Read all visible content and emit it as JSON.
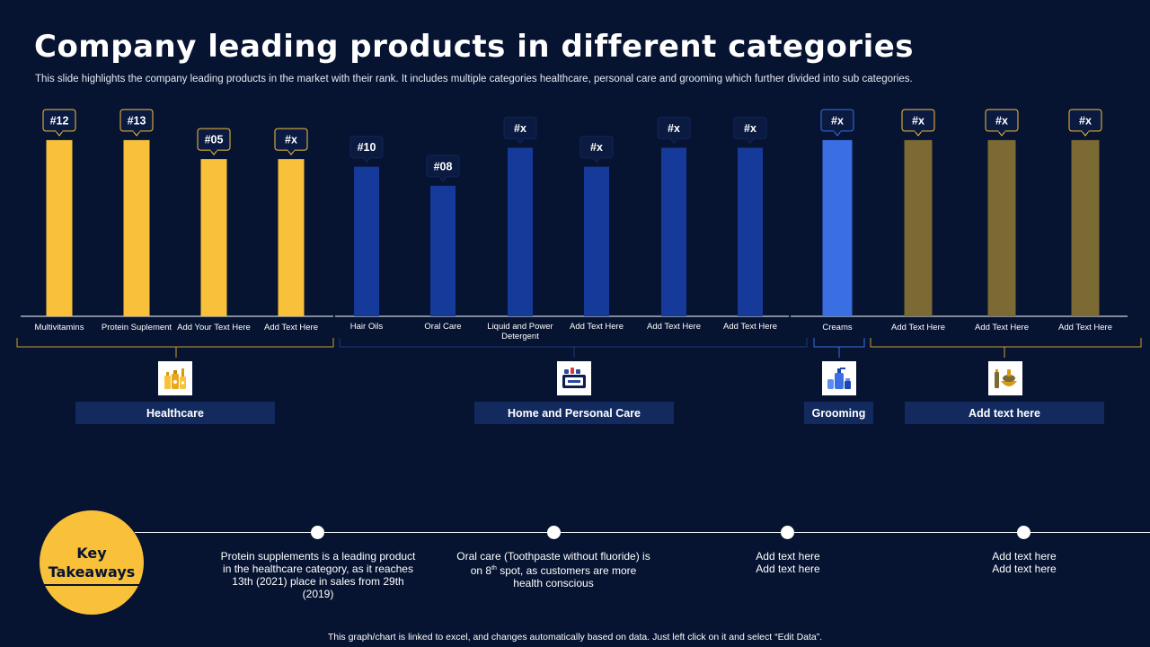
{
  "title": "Company leading products in different categories",
  "subtitle": "This slide highlights the company leading products in the market with their rank. It includes multiple categories healthcare, personal care and grooming which further divided into sub categories.",
  "colors": {
    "background": "#061331",
    "healthcare": "#f8c139",
    "home_personal": "#163a99",
    "grooming": "#3a6fe4",
    "add_text": "#7b6a34",
    "label_box": "#122a5e",
    "key_takeaways": "#f8c139"
  },
  "chart_data": {
    "type": "bar",
    "title": "",
    "xlabel": "",
    "ylabel": "",
    "ylim": [
      0,
      20
    ],
    "grid": false,
    "categories": [
      "Multivitamins",
      "Protein Suplement",
      "Add Your Text Here",
      "Add Text Here",
      "Hair Oils",
      "Oral Care",
      "Liquid and Power Detergent",
      "Add Text Here",
      "Add Text Here",
      "Add Text Here",
      "Creams",
      "Add Text Here",
      "Add Text Here",
      "Add Text Here"
    ],
    "values": [
      18.5,
      18.5,
      16.5,
      16.5,
      15.7,
      13.7,
      17.7,
      15.7,
      17.7,
      17.7,
      18.5,
      18.5,
      18.5,
      18.5
    ],
    "data_labels": [
      "#12",
      "#13",
      "#05",
      "#x",
      "#10",
      "#08",
      "#x",
      "#x",
      "#x",
      "#x",
      "#x",
      "#x",
      "#x",
      "#x"
    ],
    "groups": [
      {
        "name": "Healthcare",
        "start": 0,
        "end": 3,
        "color": "#f8c139"
      },
      {
        "name": "Home and Personal Care",
        "start": 4,
        "end": 9,
        "color": "#163a99"
      },
      {
        "name": "Grooming",
        "start": 10,
        "end": 10,
        "color": "#3a6fe4"
      },
      {
        "name": "Add  text here",
        "start": 11,
        "end": 13,
        "color": "#7b6a34"
      }
    ]
  },
  "groups": [
    {
      "name": "Healthcare",
      "icon": "medicine-bottles-icon"
    },
    {
      "name": "Home and Personal Care",
      "icon": "detergent-icon"
    },
    {
      "name": "Grooming",
      "icon": "cosmetics-icon"
    },
    {
      "name": "Add  text here",
      "icon": "food-bowl-icon"
    }
  ],
  "key_takeaways": {
    "label_line1": "Key",
    "label_line2": "Takeaways",
    "items": [
      {
        "text": "Protein supplements is a leading product in the healthcare category, as it reaches 13th (2021) place in sales from 29th (2019)"
      },
      {
        "text_before": "Oral care (Toothpaste without fluoride) is on 8",
        "sup": "th",
        "text_after": " spot, as customers are more health conscious"
      },
      {
        "line1": "Add text here",
        "line2": "Add text here"
      },
      {
        "line1": "Add text here",
        "line2": "Add text here"
      }
    ]
  },
  "footer": "This graph/chart is linked to excel, and changes automatically based on data. Just left click on it and select “Edit Data”."
}
